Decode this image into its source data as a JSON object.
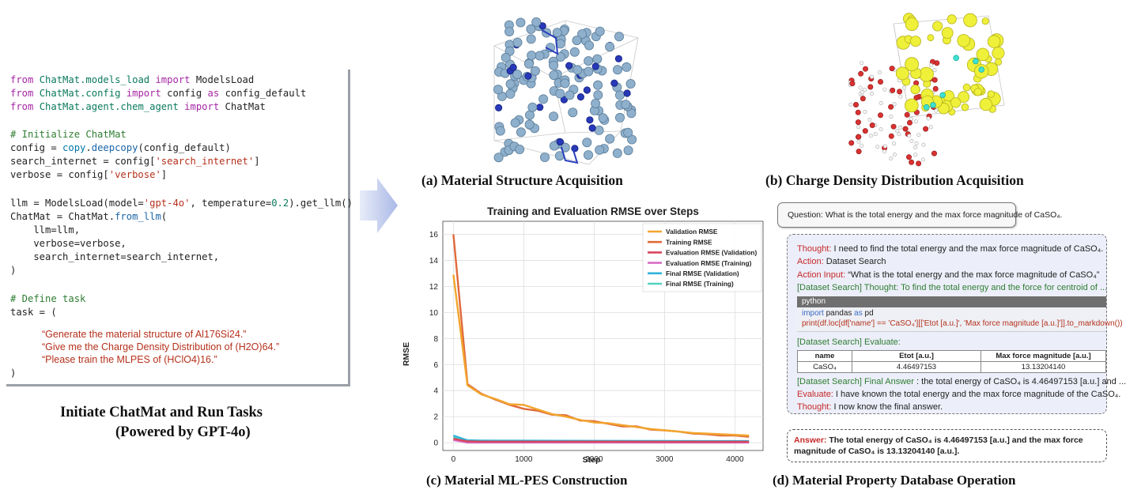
{
  "code": {
    "import1": {
      "kw": "from",
      "mod": "ChatMat.models_load",
      "imp": "import",
      "name": "ModelsLoad"
    },
    "import2": {
      "kw": "from",
      "mod": "ChatMat.config",
      "imp": "import",
      "name": "config",
      "as": "as",
      "alias": "config_default"
    },
    "import3": {
      "kw": "from",
      "mod": "ChatMat.agent.chem_agent",
      "imp": "import",
      "name": "ChatMat"
    },
    "comment1": "# Initialize ChatMat",
    "line_config": {
      "a": "config = ",
      "b": "copy",
      "c": ".",
      "d": "deepcopy",
      "e": "(config_default)"
    },
    "line_search": {
      "a": "search_internet = config[",
      "b": "'search_internet'",
      "c": "]"
    },
    "line_verbose": {
      "a": "verbose = config[",
      "b": "'verbose'",
      "c": "]"
    },
    "line_llm": {
      "a": "llm = ModelsLoad(model=",
      "b": "'gpt-4o'",
      "c": ", temperature=",
      "d": "0.2",
      "e": ").get_llm()"
    },
    "line_chatmat": {
      "a": "ChatMat = ChatMat.",
      "b": "from_llm",
      "c": "("
    },
    "arg1": "    llm=llm,",
    "arg2": "    verbose=verbose,",
    "arg3": "    search_internet=search_internet,",
    "close1": ")",
    "comment2": "# Define task",
    "task_open": "task = (",
    "task1": "“Generate the material structure of Al176Si24.”",
    "task2": "“Give me the Charge Density Distribution of (H2O)64.”",
    "task3": "“Please train the MLPES of (HClO4)16.”",
    "close2": ")"
  },
  "captions": {
    "left_line1": "Initiate ChatMat and Run Tasks",
    "left_line2": "(Powered by GPT-4o)",
    "a": "(a) Material Structure Acquisition",
    "b": "(b) Charge Density Distribution Acquisition",
    "c": "(c) Material ML-PES Construction",
    "d": "(d) Material Property Database Operation"
  },
  "chart_data": {
    "type": "line",
    "title": "Training and Evaluation RMSE over Steps",
    "xlabel": "Step",
    "ylabel": "RMSE",
    "xlim": [
      -150,
      4400
    ],
    "ylim": [
      -0.6,
      17
    ],
    "xticks": [
      0,
      1000,
      2000,
      3000,
      4000
    ],
    "yticks": [
      0,
      2,
      4,
      6,
      8,
      10,
      12,
      14,
      16
    ],
    "grid": true,
    "legend": "top-right",
    "series": [
      {
        "name": "Validation RMSE",
        "color": "#f2a52e",
        "x": [
          0,
          200,
          400,
          600,
          800,
          1000,
          1200,
          1400,
          1600,
          1800,
          2000,
          2200,
          2400,
          2600,
          2800,
          3000,
          3200,
          3400,
          3600,
          3800,
          4000,
          4200
        ],
        "y": [
          12.9,
          4.4,
          3.7,
          3.35,
          2.95,
          2.9,
          2.55,
          2.2,
          2.0,
          1.75,
          1.55,
          1.5,
          1.35,
          1.2,
          1.05,
          0.95,
          0.85,
          0.75,
          0.7,
          0.65,
          0.6,
          0.55
        ]
      },
      {
        "name": "Training RMSE",
        "color": "#e06a3a",
        "x": [
          0,
          200,
          400,
          600,
          800,
          1000,
          1200,
          1400,
          1600,
          1800,
          2000,
          2200,
          2400,
          2600,
          2800,
          3000,
          3200,
          3400,
          3600,
          3800,
          4000,
          4200
        ],
        "y": [
          16.0,
          4.5,
          3.75,
          3.3,
          2.9,
          2.6,
          2.45,
          2.15,
          2.1,
          1.7,
          1.65,
          1.45,
          1.25,
          1.25,
          1.0,
          0.95,
          0.85,
          0.7,
          0.65,
          0.55,
          0.55,
          0.45
        ]
      },
      {
        "name": "Evaluation RMSE (Validation)",
        "color": "#d9455b",
        "x": [
          0,
          200,
          400,
          1000,
          2000,
          3000,
          4000,
          4200
        ],
        "y": [
          0.3,
          0.1,
          0.08,
          0.08,
          0.08,
          0.07,
          0.07,
          0.07
        ]
      },
      {
        "name": "Evaluation RMSE (Training)",
        "color": "#d86fc6",
        "x": [
          0,
          200,
          400,
          1000,
          2000,
          3000,
          4000,
          4200
        ],
        "y": [
          0.2,
          0.0,
          0.0,
          0.0,
          0.0,
          0.0,
          0.0,
          0.0
        ]
      },
      {
        "name": "Final RMSE (Validation)",
        "color": "#2fb3d9",
        "x": [
          0,
          200,
          400,
          1000,
          2000,
          3000,
          4000,
          4200
        ],
        "y": [
          0.55,
          0.18,
          0.16,
          0.15,
          0.14,
          0.13,
          0.12,
          0.12
        ]
      },
      {
        "name": "Final RMSE (Training)",
        "color": "#56d1c1",
        "x": [
          0,
          200,
          400,
          1000,
          2000,
          3000,
          4000,
          4200
        ],
        "y": [
          0.4,
          0.12,
          0.1,
          0.1,
          0.09,
          0.09,
          0.09,
          0.09
        ]
      }
    ]
  },
  "panel_d": {
    "question": "Question: What is the total energy and the max force magnitude of CaSO₄.",
    "thought_label": "Thought:",
    "thought_text": " I need to find the total energy and the max force magnitude of CaSO₄.",
    "action_label": "Action:",
    "action_text": " Dataset Search",
    "action_input_label": "Action Input:",
    "action_input_text": "  “What is the total energy and the max force magnitude of CaSO₄”",
    "ds_thought": "[Dataset Search] Thought: To find the total energy and the force for centroid of  ...",
    "code_lang": "python",
    "code_l1_kw": "import",
    "code_l1_rest": " pandas ",
    "code_l1_as": "as",
    "code_l1_end": " pd",
    "code_l2": "print(df.loc[df['name'] == 'CaSO₄'][['Etot [a.u.]', 'Max force magnitude [a.u.]']].to_markdown())",
    "evaluate": "[Dataset Search] Evaluate:",
    "table_headers": [
      "name",
      "Etot [a.u.]",
      "Max force magnitude [a.u.]"
    ],
    "table_row": [
      "CaSO₄",
      "4.46497153",
      "13.13204140"
    ],
    "final_answer_label": "[Dataset Search] Final Answer",
    "final_answer_text": " : the total energy of CaSO₄ is 4.46497153 [a.u.] and ...",
    "evaluate2_label": "Evaluate:",
    "evaluate2_text": " I have known the total energy and the max force magnitude of the CaSO₄.",
    "thought2_label": "Thought:",
    "thought2_text": " I now know the final answer.",
    "answer_label": "Answer:",
    "answer_text": " The total energy of CaSO₄ is 4.46497153 [a.u.] and the max force",
    "answer_text2": "magnitude of CaSO₄ is 13.13204140 [a.u.]."
  }
}
